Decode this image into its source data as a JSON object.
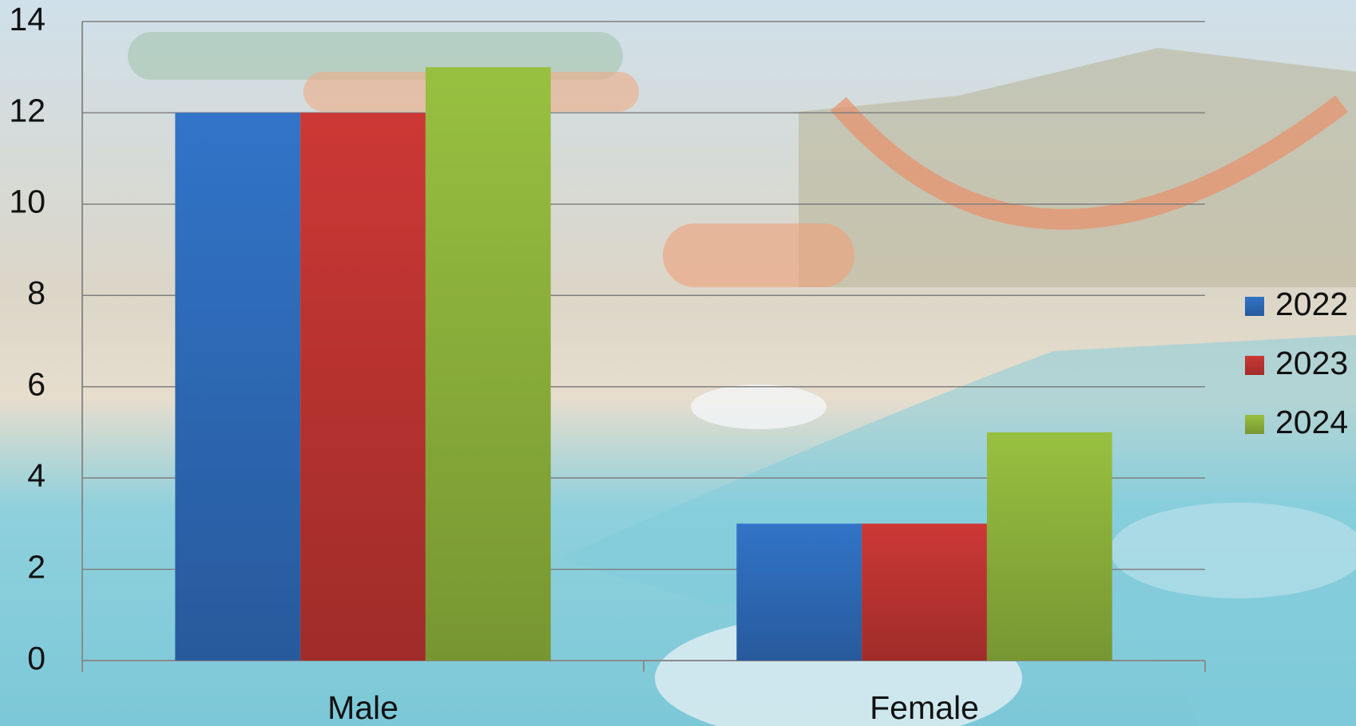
{
  "chart_data": {
    "type": "bar",
    "categories": [
      "Male",
      "Female"
    ],
    "series": [
      {
        "name": "2022",
        "color": "#3274c8",
        "values": [
          12,
          3
        ]
      },
      {
        "name": "2023",
        "color": "#cc3835",
        "values": [
          12,
          3
        ]
      },
      {
        "name": "2024",
        "color": "#98c040",
        "values": [
          13,
          5
        ]
      }
    ],
    "ylim": [
      0,
      14
    ],
    "yticks": [
      0,
      2,
      4,
      6,
      8,
      10,
      12,
      14
    ],
    "grid": true,
    "legend": "right"
  }
}
